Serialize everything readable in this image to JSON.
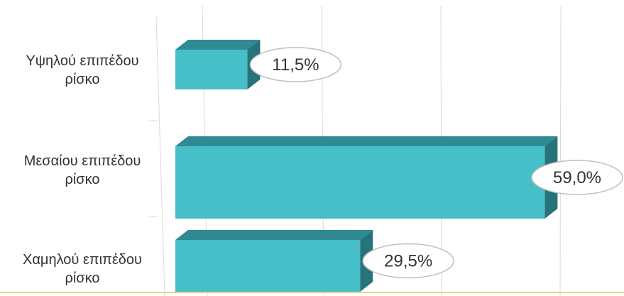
{
  "chart_data": {
    "type": "bar",
    "orientation": "horizontal",
    "style": "3d",
    "categories": [
      [
        "Υψηλού επιπέδου",
        "ρίσκο"
      ],
      [
        "Μεσαίου επιπέδου",
        "ρίσκο"
      ],
      [
        "Χαμηλού επιπέδου",
        "ρίσκο"
      ]
    ],
    "values": [
      11.5,
      59.0,
      29.5
    ],
    "value_labels": [
      "11,5%",
      "59,0%",
      "29,5%"
    ],
    "unit": "%",
    "xlim": [
      0,
      60
    ],
    "grid": true,
    "legend": "none",
    "colors": {
      "bar_front": "#46BFC9",
      "bar_top": "#2F8A93",
      "bar_side": "#27737B",
      "grid": "#D9D9D9",
      "floor": "#E7D38A",
      "label_border": "#BFBFBF",
      "text": "#333333"
    }
  }
}
